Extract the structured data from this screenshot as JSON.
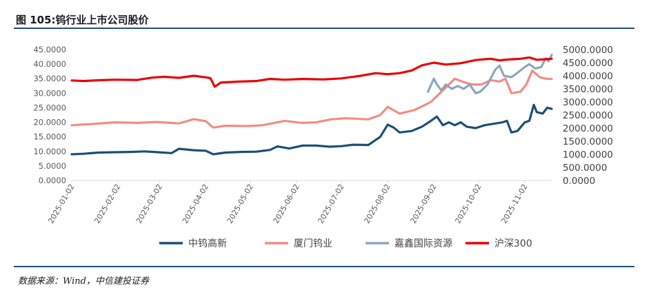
{
  "figure": {
    "title": "图 105:钨行业上市公司股价",
    "source": "数据来源：Wind，中信建投证券"
  },
  "colors": {
    "rule": "#1f4e79",
    "axis": "#d9d9d9"
  },
  "chart_data": {
    "type": "line",
    "x_ticks": [
      "2025-01-02",
      "2025-02-02",
      "2025-03-02",
      "2025-04-02",
      "2025-05-02",
      "2025-06-02",
      "2025-07-02",
      "2025-08-02",
      "2025-09-02",
      "2025-10-02",
      "2025-11-02"
    ],
    "y_left": {
      "ylim": [
        0,
        45
      ],
      "ticks": [
        "0.0000",
        "5.0000",
        "10.0000",
        "15.0000",
        "20.0000",
        "25.0000",
        "30.0000",
        "35.0000",
        "40.0000",
        "45.0000"
      ]
    },
    "y_right": {
      "ylim": [
        0,
        5000
      ],
      "ticks": [
        "0.0000",
        "500.0000",
        "1000.0000",
        "1500.0000",
        "2000.0000",
        "2500.0000",
        "3000.0000",
        "3500.0000",
        "4000.0000",
        "4500.0000",
        "5000.0000"
      ]
    },
    "legend_position": "bottom",
    "series": [
      {
        "name": "中钨高新",
        "axis": "left",
        "color": "#1a4f77",
        "points": [
          [
            "2025-01-02",
            9.0
          ],
          [
            "2025-01-10",
            9.2
          ],
          [
            "2025-01-20",
            9.6
          ],
          [
            "2025-01-31",
            9.7
          ],
          [
            "2025-02-10",
            9.8
          ],
          [
            "2025-02-20",
            10.0
          ],
          [
            "2025-03-01",
            9.7
          ],
          [
            "2025-03-10",
            9.4
          ],
          [
            "2025-03-15",
            10.9
          ],
          [
            "2025-03-25",
            10.4
          ],
          [
            "2025-04-02",
            10.2
          ],
          [
            "2025-04-07",
            9.0
          ],
          [
            "2025-04-15",
            9.6
          ],
          [
            "2025-04-25",
            9.8
          ],
          [
            "2025-05-06",
            9.9
          ],
          [
            "2025-05-15",
            10.5
          ],
          [
            "2025-05-20",
            11.7
          ],
          [
            "2025-05-28",
            11.0
          ],
          [
            "2025-06-06",
            12.0
          ],
          [
            "2025-06-15",
            12.0
          ],
          [
            "2025-06-24",
            11.6
          ],
          [
            "2025-07-02",
            11.8
          ],
          [
            "2025-07-10",
            12.3
          ],
          [
            "2025-07-20",
            12.2
          ],
          [
            "2025-07-28",
            15.0
          ],
          [
            "2025-08-02",
            19.2
          ],
          [
            "2025-08-06",
            18.2
          ],
          [
            "2025-08-10",
            16.5
          ],
          [
            "2025-08-18",
            17.0
          ],
          [
            "2025-08-25",
            18.5
          ],
          [
            "2025-08-31",
            20.5
          ],
          [
            "2025-09-04",
            22.0
          ],
          [
            "2025-09-08",
            19.0
          ],
          [
            "2025-09-12",
            20.0
          ],
          [
            "2025-09-16",
            19.0
          ],
          [
            "2025-09-20",
            20.0
          ],
          [
            "2025-09-24",
            18.5
          ],
          [
            "2025-09-30",
            18.0
          ],
          [
            "2025-10-06",
            19.0
          ],
          [
            "2025-10-12",
            19.5
          ],
          [
            "2025-10-18",
            20.0
          ],
          [
            "2025-10-21",
            20.5
          ],
          [
            "2025-10-24",
            16.5
          ],
          [
            "2025-10-28",
            17.0
          ],
          [
            "2025-11-02",
            20.0
          ],
          [
            "2025-11-05",
            20.5
          ],
          [
            "2025-11-08",
            26.0
          ],
          [
            "2025-11-10",
            23.5
          ],
          [
            "2025-11-14",
            23.0
          ],
          [
            "2025-11-17",
            25.0
          ],
          [
            "2025-11-20",
            24.6
          ]
        ]
      },
      {
        "name": "厦门钨业",
        "axis": "left",
        "color": "#f38b84",
        "points": [
          [
            "2025-01-02",
            19.0
          ],
          [
            "2025-01-15",
            19.4
          ],
          [
            "2025-01-31",
            20.0
          ],
          [
            "2025-02-15",
            19.8
          ],
          [
            "2025-02-28",
            20.1
          ],
          [
            "2025-03-15",
            19.6
          ],
          [
            "2025-03-25",
            21.1
          ],
          [
            "2025-04-02",
            20.4
          ],
          [
            "2025-04-07",
            18.2
          ],
          [
            "2025-04-15",
            18.8
          ],
          [
            "2025-04-30",
            18.7
          ],
          [
            "2025-05-10",
            19.0
          ],
          [
            "2025-05-25",
            20.5
          ],
          [
            "2025-06-05",
            19.8
          ],
          [
            "2025-06-15",
            20.0
          ],
          [
            "2025-06-25",
            21.0
          ],
          [
            "2025-07-05",
            21.4
          ],
          [
            "2025-07-20",
            21.0
          ],
          [
            "2025-07-28",
            22.5
          ],
          [
            "2025-08-02",
            25.3
          ],
          [
            "2025-08-10",
            23.0
          ],
          [
            "2025-08-20",
            24.2
          ],
          [
            "2025-08-31",
            27.0
          ],
          [
            "2025-09-06",
            30.0
          ],
          [
            "2025-09-12",
            33.0
          ],
          [
            "2025-09-16",
            35.0
          ],
          [
            "2025-09-22",
            33.8
          ],
          [
            "2025-09-28",
            33.0
          ],
          [
            "2025-10-04",
            33.0
          ],
          [
            "2025-10-10",
            34.5
          ],
          [
            "2025-10-16",
            34.0
          ],
          [
            "2025-10-20",
            35.0
          ],
          [
            "2025-10-24",
            30.0
          ],
          [
            "2025-10-30",
            30.5
          ],
          [
            "2025-11-03",
            33.0
          ],
          [
            "2025-11-07",
            37.8
          ],
          [
            "2025-11-12",
            35.5
          ],
          [
            "2025-11-16",
            35.0
          ],
          [
            "2025-11-20",
            34.9
          ]
        ]
      },
      {
        "name": "嘉鑫国际资源",
        "axis": "left",
        "color": "#8ea6bc",
        "points": [
          [
            "2025-08-29",
            30.5
          ],
          [
            "2025-09-02",
            35.0
          ],
          [
            "2025-09-04",
            33.0
          ],
          [
            "2025-09-07",
            31.0
          ],
          [
            "2025-09-10",
            33.0
          ],
          [
            "2025-09-14",
            31.5
          ],
          [
            "2025-09-18",
            32.5
          ],
          [
            "2025-09-22",
            31.5
          ],
          [
            "2025-09-26",
            33.0
          ],
          [
            "2025-09-30",
            30.0
          ],
          [
            "2025-10-03",
            30.5
          ],
          [
            "2025-10-08",
            33.0
          ],
          [
            "2025-10-13",
            38.0
          ],
          [
            "2025-10-16",
            39.5
          ],
          [
            "2025-10-19",
            36.0
          ],
          [
            "2025-10-24",
            35.5
          ],
          [
            "2025-10-28",
            37.0
          ],
          [
            "2025-11-02",
            39.0
          ],
          [
            "2025-11-05",
            40.0
          ],
          [
            "2025-11-09",
            38.5
          ],
          [
            "2025-11-13",
            39.0
          ],
          [
            "2025-11-16",
            42.0
          ],
          [
            "2025-11-18",
            41.0
          ],
          [
            "2025-11-20",
            43.2
          ]
        ]
      },
      {
        "name": "沪深300",
        "axis": "right",
        "color": "#ea0000",
        "points": [
          [
            "2025-01-02",
            3820
          ],
          [
            "2025-01-10",
            3800
          ],
          [
            "2025-01-20",
            3830
          ],
          [
            "2025-01-31",
            3850
          ],
          [
            "2025-02-15",
            3840
          ],
          [
            "2025-02-25",
            3930
          ],
          [
            "2025-03-05",
            3960
          ],
          [
            "2025-03-15",
            3920
          ],
          [
            "2025-03-25",
            4000
          ],
          [
            "2025-04-02",
            3940
          ],
          [
            "2025-04-05",
            3910
          ],
          [
            "2025-04-08",
            3580
          ],
          [
            "2025-04-12",
            3740
          ],
          [
            "2025-04-25",
            3780
          ],
          [
            "2025-05-06",
            3800
          ],
          [
            "2025-05-15",
            3880
          ],
          [
            "2025-05-25",
            3850
          ],
          [
            "2025-06-06",
            3880
          ],
          [
            "2025-06-20",
            3860
          ],
          [
            "2025-07-02",
            3900
          ],
          [
            "2025-07-15",
            4000
          ],
          [
            "2025-07-25",
            4100
          ],
          [
            "2025-08-02",
            4060
          ],
          [
            "2025-08-10",
            4100
          ],
          [
            "2025-08-18",
            4200
          ],
          [
            "2025-08-25",
            4400
          ],
          [
            "2025-09-02",
            4500
          ],
          [
            "2025-09-10",
            4430
          ],
          [
            "2025-09-20",
            4480
          ],
          [
            "2025-09-30",
            4600
          ],
          [
            "2025-10-10",
            4650
          ],
          [
            "2025-10-16",
            4590
          ],
          [
            "2025-10-22",
            4620
          ],
          [
            "2025-10-30",
            4650
          ],
          [
            "2025-11-05",
            4700
          ],
          [
            "2025-11-10",
            4610
          ],
          [
            "2025-11-15",
            4630
          ],
          [
            "2025-11-20",
            4650
          ]
        ]
      }
    ]
  }
}
